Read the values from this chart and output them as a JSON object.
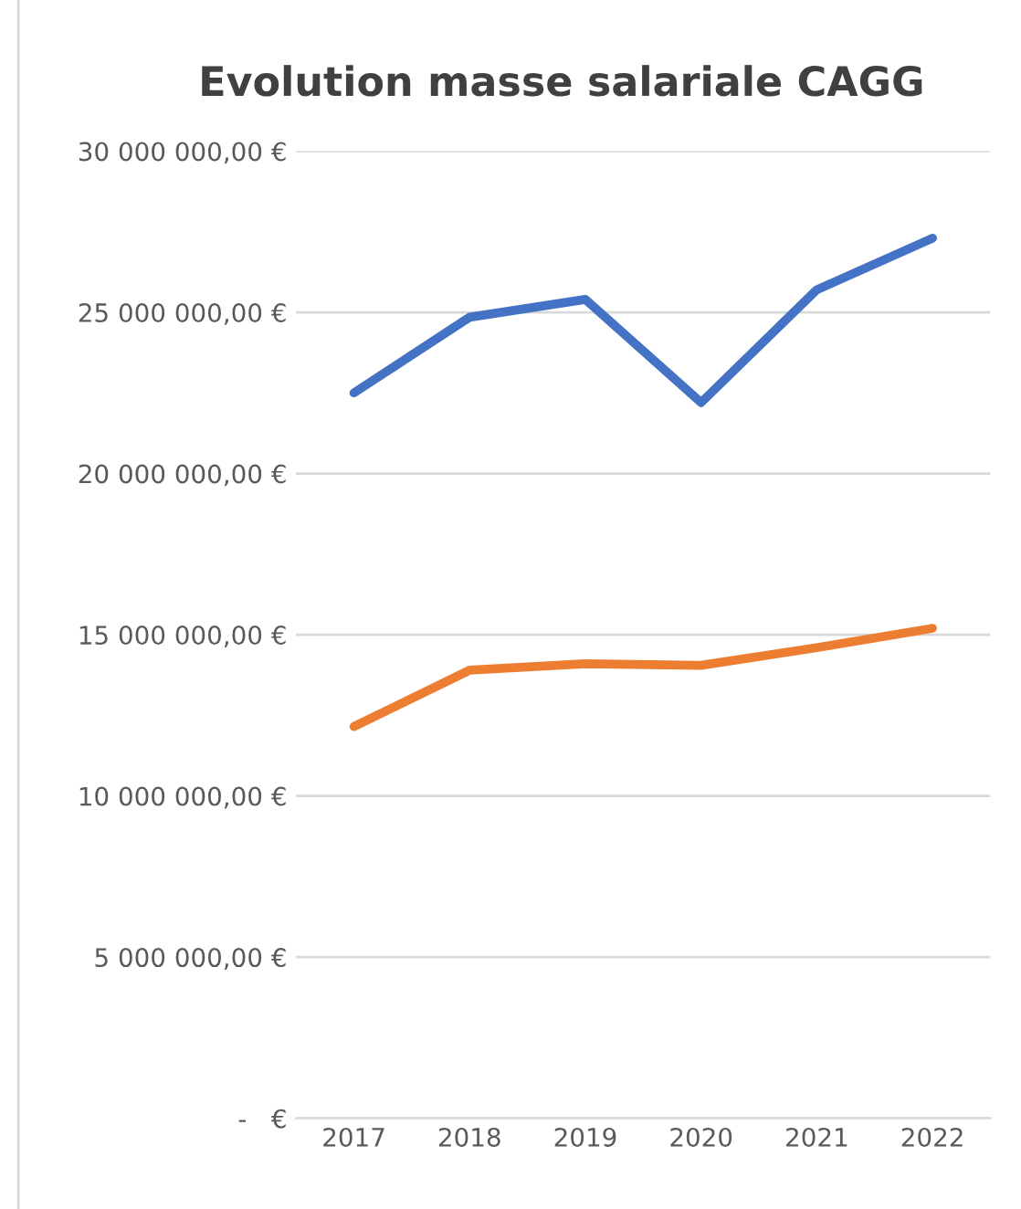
{
  "chart_data": {
    "type": "line",
    "title": "Evolution masse salariale CAGG",
    "categories": [
      "2017",
      "2018",
      "2019",
      "2020",
      "2021",
      "2022"
    ],
    "series": [
      {
        "color": "#4472c4",
        "values": [
          22500000,
          24850000,
          25400000,
          22200000,
          25700000,
          27300000
        ]
      },
      {
        "color": "#ed7d31",
        "values": [
          12150000,
          13900000,
          14100000,
          14050000,
          14600000,
          15200000
        ]
      }
    ],
    "ylim": [
      0,
      30000000
    ],
    "yticks": [
      {
        "value": 0,
        "label": "-   €"
      },
      {
        "value": 5000000,
        "label": "5 000 000,00 €"
      },
      {
        "value": 10000000,
        "label": "10 000 000,00 €"
      },
      {
        "value": 15000000,
        "label": "15 000 000,00 €"
      },
      {
        "value": 20000000,
        "label": "20 000 000,00 €"
      },
      {
        "value": 25000000,
        "label": "25 000 000,00 €"
      },
      {
        "value": 30000000,
        "label": "30 000 000,00 €"
      }
    ],
    "grid": "y",
    "legend": false,
    "marker": "none",
    "line_style": "solid"
  }
}
